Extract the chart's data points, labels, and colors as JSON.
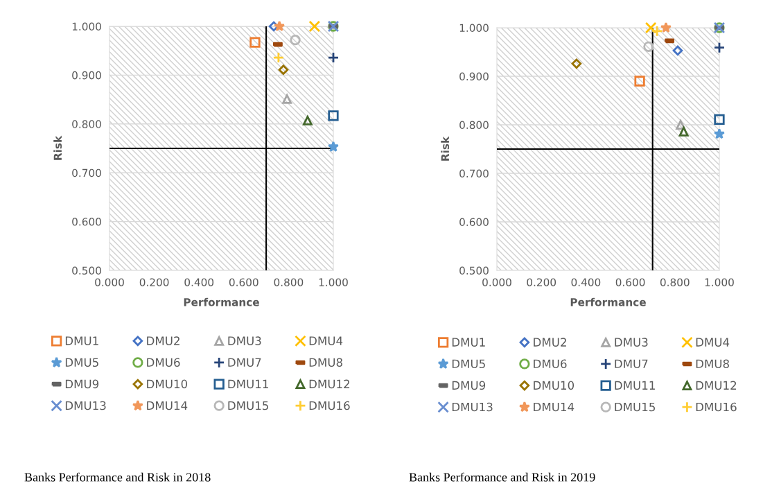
{
  "chart_data": [
    {
      "type": "scatter",
      "xlabel": "Performance",
      "ylabel": "Risk",
      "xlim": [
        0,
        1
      ],
      "ylim": [
        0.5,
        1
      ],
      "xticks": [
        {
          "value": 0,
          "label": "0.000"
        },
        {
          "value": 0.2,
          "label": "0.200"
        },
        {
          "value": 0.4,
          "label": "0.400"
        },
        {
          "value": 0.6,
          "label": "0.600"
        },
        {
          "value": 0.8,
          "label": "0.800"
        },
        {
          "value": 1,
          "label": "1.000"
        }
      ],
      "yticks": [
        {
          "value": 0.5,
          "label": "0.500"
        },
        {
          "value": 0.6,
          "label": "0.600"
        },
        {
          "value": 0.7,
          "label": "0.700"
        },
        {
          "value": 0.8,
          "label": "0.800"
        },
        {
          "value": 0.9,
          "label": "0.900"
        },
        {
          "value": 1,
          "label": "1.000"
        }
      ],
      "grid": "y",
      "legend": "bottom",
      "ref_lines": [
        {
          "axis": "x",
          "value": 0.7,
          "color": "#000000"
        },
        {
          "axis": "y",
          "value": 0.75,
          "color": "#000000"
        }
      ],
      "annotations": [
        "Banks Performance and Risk in 2018"
      ],
      "series": [
        {
          "name": "DMU1",
          "color": "#ed7d31",
          "marker": "square",
          "x": [
            0.65
          ],
          "values": [
            0.967
          ]
        },
        {
          "name": "DMU2",
          "color": "#4472c4",
          "marker": "diamond",
          "x": [
            0.734
          ],
          "values": [
            1.0
          ]
        },
        {
          "name": "DMU3",
          "color": "#a5a5a5",
          "marker": "triangle",
          "x": [
            0.793
          ],
          "values": [
            0.851
          ]
        },
        {
          "name": "DMU4",
          "color": "#ffc000",
          "marker": "cross",
          "x": [
            0.916
          ],
          "values": [
            1.0
          ]
        },
        {
          "name": "DMU5",
          "color": "#5b9bd5",
          "marker": "star",
          "x": [
            1.0
          ],
          "values": [
            0.753
          ]
        },
        {
          "name": "DMU6",
          "color": "#70ad47",
          "marker": "circle",
          "x": [
            1.0
          ],
          "values": [
            1.0
          ]
        },
        {
          "name": "DMU7",
          "color": "#264478",
          "marker": "plus",
          "x": [
            1.0
          ],
          "values": [
            0.936
          ]
        },
        {
          "name": "DMU8",
          "color": "#9e480e",
          "x": [
            0.752
          ],
          "values": [
            0.963
          ]
        },
        {
          "name": "DMU9",
          "color": "#636363",
          "x": [
            1.0
          ],
          "values": [
            1.0
          ]
        },
        {
          "name": "DMU10",
          "color": "#997300",
          "marker": "diamond",
          "x": [
            0.777
          ],
          "values": [
            0.911
          ]
        },
        {
          "name": "DMU11",
          "color": "#255e91",
          "marker": "square",
          "x": [
            1.0
          ],
          "values": [
            0.817
          ]
        },
        {
          "name": "DMU12",
          "color": "#43682b",
          "marker": "triangle",
          "x": [
            0.885
          ],
          "values": [
            0.807
          ]
        },
        {
          "name": "DMU13",
          "color": "#698ed0",
          "marker": "cross",
          "x": [
            1.0
          ],
          "values": [
            1.0
          ]
        },
        {
          "name": "DMU14",
          "color": "#f1975a",
          "marker": "star",
          "x": [
            0.759
          ],
          "values": [
            1.0
          ]
        },
        {
          "name": "DMU15",
          "color": "#b7b7b7",
          "marker": "circle",
          "x": [
            0.83
          ],
          "values": [
            0.972
          ]
        },
        {
          "name": "DMU16",
          "color": "#ffcd33",
          "marker": "plus",
          "x": [
            0.755
          ],
          "values": [
            0.936
          ]
        }
      ]
    },
    {
      "type": "scatter",
      "xlabel": "Performance",
      "ylabel": "Risk",
      "xlim": [
        0,
        1
      ],
      "ylim": [
        0.5,
        1
      ],
      "xticks": [
        {
          "value": 0,
          "label": "0.000"
        },
        {
          "value": 0.2,
          "label": "0.200"
        },
        {
          "value": 0.4,
          "label": "0.400"
        },
        {
          "value": 0.6,
          "label": "0.600"
        },
        {
          "value": 0.8,
          "label": "0.800"
        },
        {
          "value": 1,
          "label": "1.000"
        }
      ],
      "yticks": [
        {
          "value": 0.5,
          "label": "0.500"
        },
        {
          "value": 0.6,
          "label": "0.600"
        },
        {
          "value": 0.7,
          "label": "0.700"
        },
        {
          "value": 0.8,
          "label": "0.800"
        },
        {
          "value": 0.9,
          "label": "0.900"
        },
        {
          "value": 1,
          "label": "1.000"
        }
      ],
      "grid": "y",
      "legend": "bottom",
      "ref_lines": [
        {
          "axis": "x",
          "value": 0.7,
          "color": "#000000"
        },
        {
          "axis": "y",
          "value": 0.75,
          "color": "#000000"
        }
      ],
      "annotations": [
        "Banks Performance and Risk in 2019"
      ],
      "series": [
        {
          "name": "DMU1",
          "color": "#ed7d31",
          "marker": "square",
          "x": [
            0.642
          ],
          "values": [
            0.89
          ]
        },
        {
          "name": "DMU2",
          "color": "#4472c4",
          "marker": "diamond",
          "x": [
            0.813
          ],
          "values": [
            0.953
          ]
        },
        {
          "name": "DMU3",
          "color": "#a5a5a5",
          "marker": "triangle",
          "x": [
            0.826
          ],
          "values": [
            0.8
          ]
        },
        {
          "name": "DMU4",
          "color": "#ffc000",
          "marker": "cross",
          "x": [
            0.692
          ],
          "values": [
            1.0
          ]
        },
        {
          "name": "DMU5",
          "color": "#5b9bd5",
          "marker": "star",
          "x": [
            1.0
          ],
          "values": [
            0.781
          ]
        },
        {
          "name": "DMU6",
          "color": "#70ad47",
          "marker": "circle",
          "x": [
            1.0
          ],
          "values": [
            1.0
          ]
        },
        {
          "name": "DMU7",
          "color": "#264478",
          "marker": "plus",
          "x": [
            1.0
          ],
          "values": [
            0.959
          ]
        },
        {
          "name": "DMU8",
          "color": "#9e480e",
          "x": [
            0.776
          ],
          "values": [
            0.973
          ]
        },
        {
          "name": "DMU9",
          "color": "#636363",
          "x": [
            1.0
          ],
          "values": [
            1.0
          ]
        },
        {
          "name": "DMU10",
          "color": "#997300",
          "marker": "diamond",
          "x": [
            0.358
          ],
          "values": [
            0.926
          ]
        },
        {
          "name": "DMU11",
          "color": "#255e91",
          "marker": "square",
          "x": [
            1.0
          ],
          "values": [
            0.811
          ]
        },
        {
          "name": "DMU12",
          "color": "#43682b",
          "marker": "triangle",
          "x": [
            0.84
          ],
          "values": [
            0.786
          ]
        },
        {
          "name": "DMU13",
          "color": "#698ed0",
          "marker": "cross",
          "x": [
            1.0
          ],
          "values": [
            1.0
          ]
        },
        {
          "name": "DMU14",
          "color": "#f1975a",
          "marker": "star",
          "x": [
            0.76
          ],
          "values": [
            1.0
          ]
        },
        {
          "name": "DMU15",
          "color": "#b7b7b7",
          "marker": "circle",
          "x": [
            0.682
          ],
          "values": [
            0.961
          ]
        },
        {
          "name": "DMU16",
          "color": "#ffcd33",
          "marker": "plus",
          "x": [
            0.72
          ],
          "values": [
            0.993
          ]
        }
      ]
    }
  ]
}
